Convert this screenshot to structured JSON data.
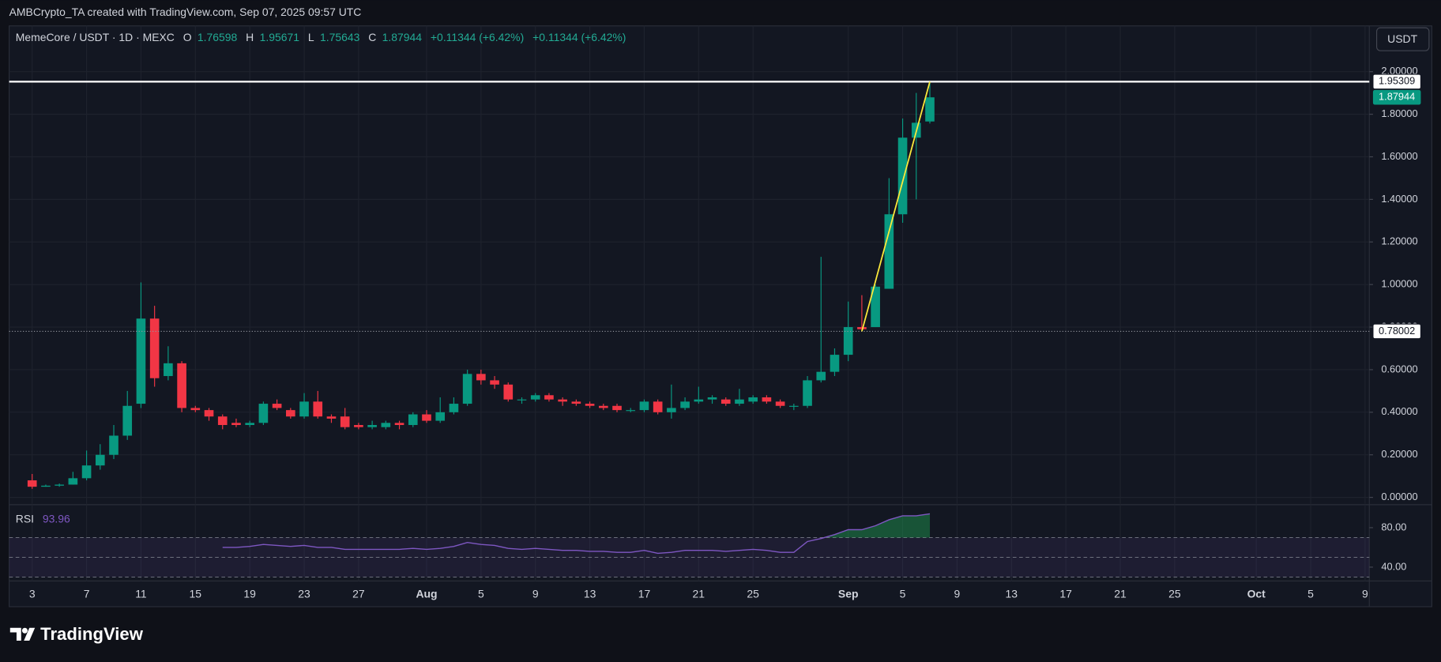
{
  "header": {
    "credit": "AMBCrypto_TA created with TradingView.com, Sep 07, 2025 09:57 UTC",
    "currency_button": "USDT",
    "footer_logo": "TradingView"
  },
  "chart_data": {
    "type": "candlestick",
    "legend": {
      "symbol": "MemeCore / USDT · 1D · MEXC",
      "open_key": "O",
      "high_key": "H",
      "low_key": "L",
      "close_key": "C",
      "change": "+0.11344 (+6.42%)",
      "change_2": "+0.11344 (+6.42%)"
    },
    "categories": [
      "3",
      null,
      null,
      null,
      "7",
      null,
      null,
      null,
      "11",
      null,
      null,
      null,
      "15",
      null,
      null,
      null,
      "19",
      null,
      null,
      null,
      "23",
      null,
      null,
      null,
      "27",
      null,
      null,
      null,
      null,
      "Aug",
      null,
      null,
      null,
      "5",
      null,
      null,
      null,
      "9",
      null,
      null,
      null,
      "13",
      null,
      null,
      null,
      "17",
      null,
      null,
      null,
      "21",
      null,
      null,
      null,
      "25",
      null,
      null,
      null,
      null,
      null,
      null,
      "Sep",
      null,
      null,
      null,
      "5",
      null,
      null,
      null,
      "9",
      null,
      null,
      null,
      "13",
      null,
      null,
      null,
      "17",
      null,
      null,
      null,
      "21",
      null,
      null,
      null,
      "25",
      null,
      null,
      null,
      null,
      null,
      "Oct",
      null,
      null,
      null,
      "5",
      null,
      null,
      null,
      "9"
    ],
    "open": [
      0.08,
      0.05,
      0.055,
      0.06,
      0.09,
      0.15,
      0.2,
      0.29,
      0.44,
      0.84,
      0.57,
      0.63,
      0.42,
      0.41,
      0.38,
      0.35,
      0.34,
      0.35,
      0.44,
      0.41,
      0.38,
      0.45,
      0.38,
      0.38,
      0.34,
      0.33,
      0.33,
      0.35,
      0.34,
      0.39,
      0.36,
      0.4,
      0.44,
      0.58,
      0.55,
      0.53,
      0.46,
      0.46,
      0.48,
      0.46,
      0.45,
      0.44,
      0.43,
      0.43,
      0.41,
      0.41,
      0.45,
      0.4,
      0.42,
      0.45,
      0.46,
      0.46,
      0.44,
      0.45,
      0.47,
      0.45,
      0.43,
      0.43,
      0.55,
      0.59,
      0.67,
      0.8,
      0.8,
      0.98,
      1.33,
      1.69,
      1.76598,
      null,
      null,
      null,
      null,
      null,
      null,
      null,
      null,
      null,
      null,
      null,
      null,
      null,
      null,
      null,
      null,
      null,
      null,
      null,
      null,
      null,
      null,
      null,
      null,
      null,
      null,
      null,
      null,
      null,
      null,
      null,
      null
    ],
    "high": [
      0.11,
      0.06,
      0.065,
      0.12,
      0.22,
      0.25,
      0.34,
      0.5,
      1.01,
      0.9,
      0.71,
      0.64,
      0.43,
      0.42,
      0.39,
      0.37,
      0.36,
      0.45,
      0.46,
      0.42,
      0.49,
      0.5,
      0.39,
      0.42,
      0.35,
      0.36,
      0.36,
      0.36,
      0.4,
      0.41,
      0.47,
      0.47,
      0.6,
      0.6,
      0.57,
      0.54,
      0.47,
      0.49,
      0.49,
      0.47,
      0.46,
      0.45,
      0.44,
      0.44,
      0.42,
      0.46,
      0.46,
      0.53,
      0.47,
      0.52,
      0.48,
      0.47,
      0.51,
      0.48,
      0.48,
      0.46,
      0.44,
      0.57,
      1.13,
      0.7,
      0.92,
      0.95,
      1.0,
      1.5,
      1.78,
      1.9,
      1.95671,
      null,
      null,
      null,
      null,
      null,
      null,
      null,
      null,
      null,
      null,
      null,
      null,
      null,
      null,
      null,
      null,
      null,
      null,
      null,
      null,
      null,
      null,
      null,
      null,
      null,
      null,
      null,
      null,
      null,
      null,
      null,
      null
    ],
    "low": [
      0.04,
      0.05,
      0.05,
      0.06,
      0.08,
      0.13,
      0.18,
      0.27,
      0.42,
      0.52,
      0.55,
      0.4,
      0.4,
      0.36,
      0.32,
      0.33,
      0.33,
      0.34,
      0.41,
      0.37,
      0.37,
      0.37,
      0.35,
      0.32,
      0.32,
      0.32,
      0.32,
      0.32,
      0.33,
      0.35,
      0.35,
      0.39,
      0.43,
      0.53,
      0.51,
      0.45,
      0.44,
      0.45,
      0.45,
      0.43,
      0.43,
      0.42,
      0.41,
      0.4,
      0.4,
      0.4,
      0.39,
      0.37,
      0.41,
      0.44,
      0.44,
      0.43,
      0.43,
      0.44,
      0.44,
      0.42,
      0.41,
      0.42,
      0.54,
      0.57,
      0.64,
      0.78,
      0.8,
      0.98,
      1.29,
      1.4,
      1.75643,
      null,
      null,
      null,
      null,
      null,
      null,
      null,
      null,
      null,
      null,
      null,
      null,
      null,
      null,
      null,
      null,
      null,
      null,
      null,
      null,
      null,
      null,
      null,
      null,
      null,
      null,
      null,
      null,
      null,
      null,
      null,
      null
    ],
    "close": [
      0.05,
      0.055,
      0.06,
      0.09,
      0.15,
      0.2,
      0.29,
      0.43,
      0.84,
      0.56,
      0.63,
      0.42,
      0.41,
      0.38,
      0.34,
      0.34,
      0.35,
      0.44,
      0.42,
      0.38,
      0.45,
      0.38,
      0.37,
      0.33,
      0.33,
      0.34,
      0.35,
      0.34,
      0.39,
      0.36,
      0.4,
      0.44,
      0.58,
      0.55,
      0.53,
      0.46,
      0.46,
      0.48,
      0.46,
      0.45,
      0.44,
      0.43,
      0.42,
      0.41,
      0.41,
      0.45,
      0.4,
      0.42,
      0.45,
      0.46,
      0.47,
      0.44,
      0.46,
      0.47,
      0.45,
      0.43,
      0.43,
      0.55,
      0.59,
      0.67,
      0.8,
      0.79,
      0.99,
      1.33,
      1.69,
      1.76,
      1.87944,
      null,
      null,
      null,
      null,
      null,
      null,
      null,
      null,
      null,
      null,
      null,
      null,
      null,
      null,
      null,
      null,
      null,
      null,
      null,
      null,
      null,
      null,
      null,
      null,
      null,
      null,
      null,
      null,
      null,
      null,
      null,
      null
    ],
    "up_color": "#089981",
    "down_color": "#f23645",
    "ylim": [
      -0.03,
      2.12
    ],
    "yticks": [
      {
        "value": 0,
        "label": "0.00000"
      },
      {
        "value": 0.2,
        "label": "0.20000"
      },
      {
        "value": 0.4,
        "label": "0.40000"
      },
      {
        "value": 0.6,
        "label": "0.60000"
      },
      {
        "value": 0.8,
        "label": "0.80000"
      },
      {
        "value": 1,
        "label": "1.00000"
      },
      {
        "value": 1.2,
        "label": "1.20000"
      },
      {
        "value": 1.4,
        "label": "1.40000"
      },
      {
        "value": 1.6,
        "label": "1.60000"
      },
      {
        "value": 1.8,
        "label": "1.80000"
      },
      {
        "value": 2,
        "label": "2.00000"
      }
    ],
    "grid": true,
    "price_lines": [
      {
        "value": 1.95309,
        "color": "#ffffff",
        "style": "solid"
      },
      {
        "value": 0.78002,
        "color": "#9598a1",
        "style": "dotted"
      }
    ],
    "trend_line_color": "#ffeb3b",
    "rsi": {
      "label": "RSI",
      "value_label": "93.96",
      "color": "#7e57c2",
      "fill_color": "#22c55e",
      "values": [
        null,
        null,
        null,
        null,
        null,
        null,
        null,
        null,
        null,
        null,
        null,
        null,
        null,
        null,
        60,
        60,
        61,
        63,
        62,
        61,
        62,
        60,
        60,
        58,
        58,
        58,
        58,
        58,
        59,
        58,
        59,
        61,
        65,
        63,
        62,
        59,
        58,
        59,
        58,
        57,
        57,
        56,
        56,
        55,
        55,
        57,
        54,
        55,
        57,
        57,
        57,
        56,
        57,
        58,
        57,
        55,
        55,
        66,
        69,
        73,
        78,
        78,
        82,
        88,
        92,
        92,
        93.96,
        null,
        null,
        null,
        null,
        null,
        null,
        null,
        null,
        null,
        null,
        null,
        null,
        null,
        null,
        null,
        null,
        null,
        null,
        null,
        null,
        null,
        null,
        null,
        null,
        null,
        null,
        null,
        null,
        null,
        null,
        null,
        null
      ],
      "ylim": [
        26,
        103.3
      ],
      "yticks": [
        {
          "value": 80,
          "label": "80.00"
        },
        {
          "value": 40,
          "label": "40.00"
        }
      ],
      "levels": [
        70,
        50,
        30
      ]
    }
  }
}
